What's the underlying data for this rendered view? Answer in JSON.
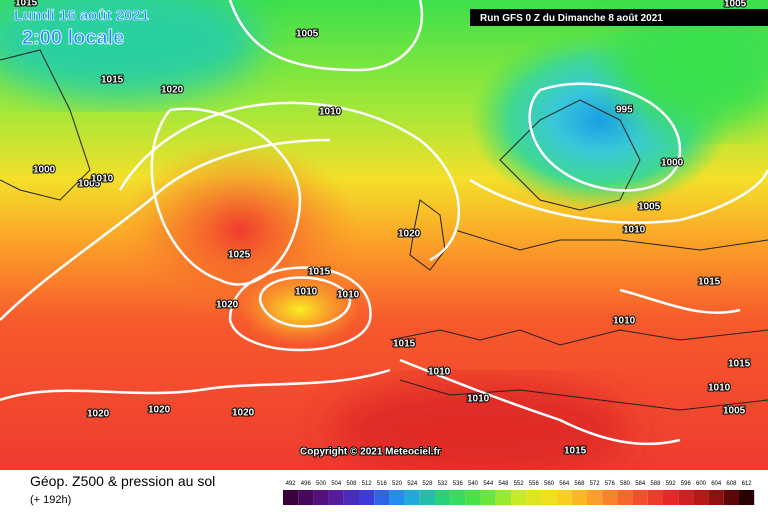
{
  "header": {
    "date": "Lundi 16 août 2021",
    "time": "2:00 locale",
    "run": "Run GFS 0 Z du Dimanche 8 août 2021"
  },
  "isobars": [
    "1015",
    "1005",
    "1005",
    "1015",
    "1020",
    "1010",
    "995",
    "1000",
    "1005",
    "1010",
    "1000",
    "1005",
    "1020",
    "1010",
    "1025",
    "1015",
    "1010",
    "1010",
    "1020",
    "1015",
    "1010",
    "1015",
    "1015",
    "1010",
    "1010",
    "1010",
    "1005",
    "1020",
    "1020",
    "1020",
    "1015"
  ],
  "copyright": "Copyright © 2021 Meteociel.fr",
  "footer": {
    "title": "Géop. Z500 & pression au sol",
    "lead": "(+ 192h)"
  },
  "legend": {
    "levels": [
      492,
      496,
      500,
      504,
      508,
      512,
      516,
      520,
      524,
      528,
      532,
      536,
      540,
      544,
      548,
      552,
      556,
      560,
      564,
      568,
      572,
      576,
      580,
      584,
      588,
      592,
      596,
      600,
      604,
      608,
      612
    ]
  }
}
